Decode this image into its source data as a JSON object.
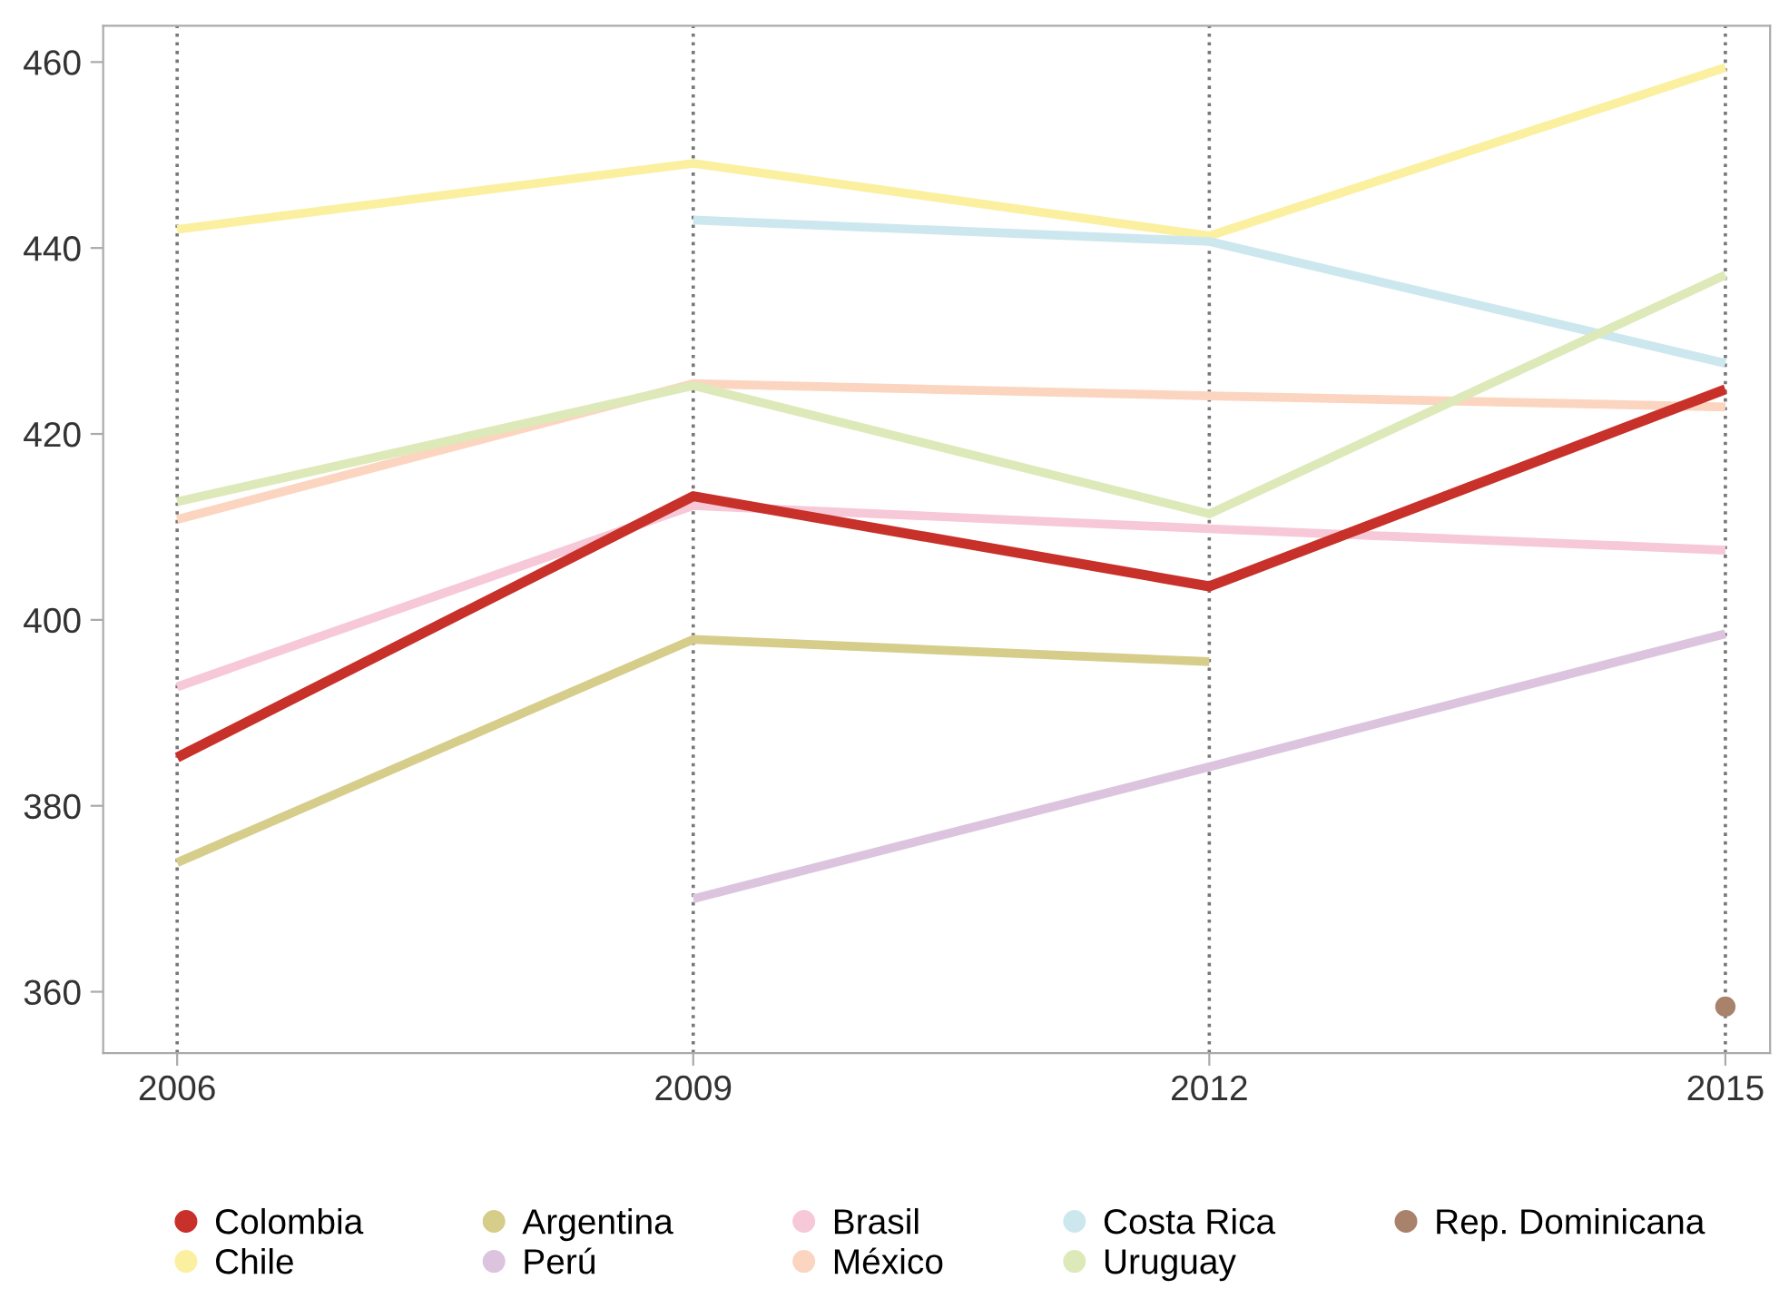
{
  "chart_data": {
    "type": "line",
    "x": [
      2006,
      2009,
      2012,
      2015
    ],
    "series": [
      {
        "name": "Colombia",
        "color": "#c8302a",
        "values": [
          385.2,
          413.3,
          403.6,
          424.8
        ]
      },
      {
        "name": "Chile",
        "color": "#fbf0a0",
        "values": [
          442.0,
          449.1,
          441.3,
          459.4
        ]
      },
      {
        "name": "Argentina",
        "color": "#d6cd8a",
        "values": [
          373.9,
          397.9,
          395.5,
          null
        ]
      },
      {
        "name": "Perú",
        "color": "#dcc4df",
        "values": [
          null,
          370.0,
          384.2,
          398.5
        ]
      },
      {
        "name": "Brasil",
        "color": "#f7c8d8",
        "values": [
          392.8,
          412.3,
          409.8,
          407.5
        ]
      },
      {
        "name": "México",
        "color": "#fbd5c0",
        "values": [
          410.8,
          425.4,
          424.1,
          422.9
        ]
      },
      {
        "name": "Costa Rica",
        "color": "#cce8ee",
        "values": [
          null,
          443.0,
          440.7,
          427.6
        ]
      },
      {
        "name": "Uruguay",
        "color": "#dde9b8",
        "values": [
          412.7,
          425.2,
          411.4,
          437.1
        ]
      },
      {
        "name": "Rep. Dominicana",
        "color": "#a8826a",
        "type": "scatter",
        "values": [
          null,
          null,
          null,
          358.4
        ]
      }
    ],
    "xlim": [
      2005.57,
      2015.26
    ],
    "xticks": [
      2006,
      2009,
      2012,
      2015
    ],
    "ylim": [
      353.4,
      463.9
    ],
    "yticks": [
      360,
      380,
      400,
      420,
      440,
      460
    ],
    "grid": "x",
    "legend": "bottom"
  }
}
